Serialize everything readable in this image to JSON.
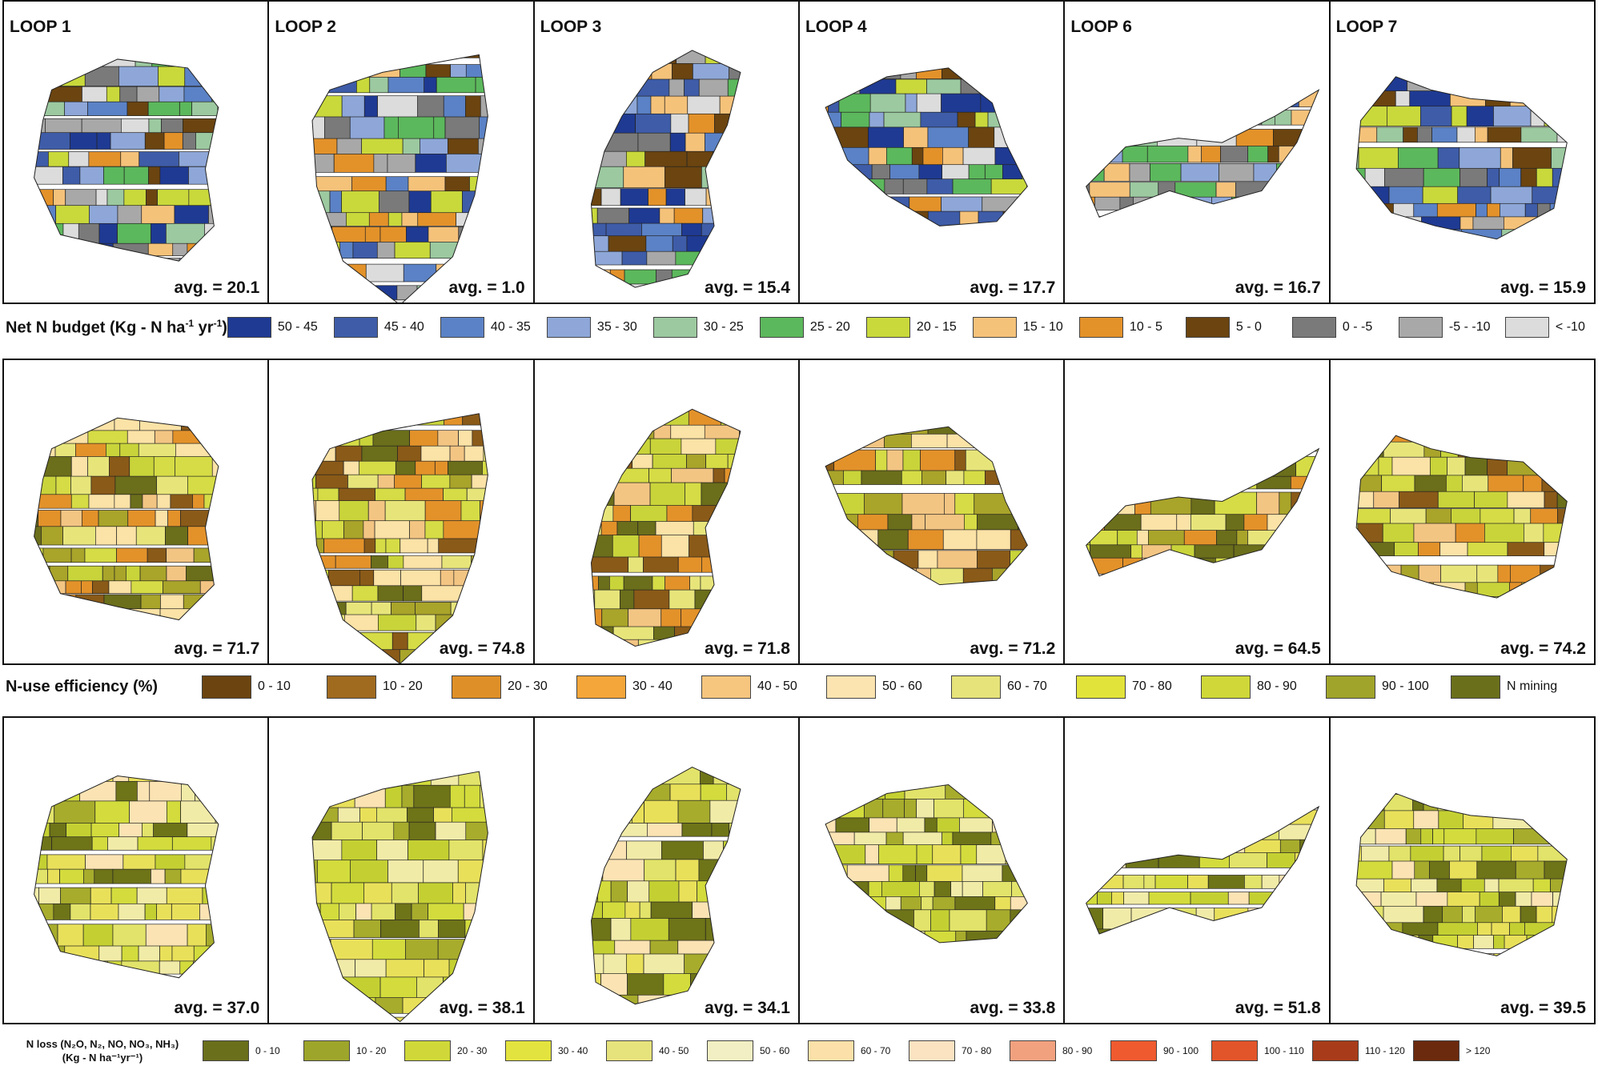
{
  "loops": [
    "LOOP 1",
    "LOOP 2",
    "LOOP 3",
    "LOOP 4",
    "LOOP 6",
    "LOOP 7"
  ],
  "rows": [
    {
      "id": "net-n-budget",
      "avgs": [
        "avg. = 20.1",
        "avg. = 1.0",
        "avg. = 15.4",
        "avg. = 17.7",
        "avg. = 16.7",
        "avg. = 15.9"
      ],
      "palette": [
        "#1f3a93",
        "#3e5ca8",
        "#5b82c6",
        "#8ea7d8",
        "#9cc9a0",
        "#5cb85c",
        "#c9d93b",
        "#f5c27a",
        "#e3922a",
        "#6b4410",
        "#7a7a7a",
        "#a8a8a8",
        "#dcdcdc"
      ],
      "legend": {
        "title": "Net N budget (Kg - N ha",
        "title_sup1": "-1",
        "title_mid": " yr",
        "title_sup2": "-1",
        "title_end": ")",
        "items": [
          {
            "label": "50 - 45",
            "color": "#1f3a93"
          },
          {
            "label": "45 - 40",
            "color": "#3e5ca8"
          },
          {
            "label": "40 - 35",
            "color": "#5b82c6"
          },
          {
            "label": "35 - 30",
            "color": "#8ea7d8"
          },
          {
            "label": "30 - 25",
            "color": "#9cc9a0"
          },
          {
            "label": "25 - 20",
            "color": "#5cb85c"
          },
          {
            "label": "20 - 15",
            "color": "#c9d93b"
          },
          {
            "label": "15 - 10",
            "color": "#f5c27a"
          },
          {
            "label": "10 - 5",
            "color": "#e3922a"
          },
          {
            "label": "5 - 0",
            "color": "#6b4410"
          },
          {
            "label": "0 - -5",
            "color": "#7a7a7a"
          },
          {
            "label": "-5 - -10",
            "color": "#a8a8a8"
          },
          {
            "label": "< -10",
            "color": "#dcdcdc"
          }
        ]
      }
    },
    {
      "id": "n-use-efficiency",
      "avgs": [
        "avg. = 71.7",
        "avg. = 74.8",
        "avg. = 71.8",
        "avg. = 71.2",
        "avg. = 64.5",
        "avg. = 74.2"
      ],
      "palette": [
        "#e7e57a",
        "#d6dc45",
        "#c9d43a",
        "#fbe2a6",
        "#f3c583",
        "#e3922a",
        "#a9a42a",
        "#6b6e1a",
        "#8a5a18"
      ],
      "legend": {
        "title": "N-use efficiency (%)",
        "items": [
          {
            "label": "0 - 10",
            "color": "#6b4410"
          },
          {
            "label": "10 - 20",
            "color": "#a06a1f"
          },
          {
            "label": "20 - 30",
            "color": "#df8f27"
          },
          {
            "label": "30 - 40",
            "color": "#f4a63a"
          },
          {
            "label": "40 - 50",
            "color": "#f6c67f"
          },
          {
            "label": "50 - 60",
            "color": "#fbe4b0"
          },
          {
            "label": "60 - 70",
            "color": "#e6e37a"
          },
          {
            "label": "70 - 80",
            "color": "#e2e33a"
          },
          {
            "label": "80 - 90",
            "color": "#cfd838"
          },
          {
            "label": "90 - 100",
            "color": "#a0a42a"
          },
          {
            "label": "N mining",
            "color": "#6a6f1c"
          }
        ]
      }
    },
    {
      "id": "n-loss",
      "avgs": [
        "avg. = 37.0",
        "avg. = 38.1",
        "avg. = 34.1",
        "avg. = 33.8",
        "avg. = 51.8",
        "avg. = 39.5"
      ],
      "palette": [
        "#d3dc3c",
        "#c4d032",
        "#e2e36a",
        "#a7ac2c",
        "#f1eba8",
        "#6e7418",
        "#fbe3b3",
        "#e9e05a"
      ],
      "legend": {
        "title_line1": "N loss (N₂O, N₂, NO, NO₃, NH₃)",
        "title_line2": "(Kg - N ha⁻¹yr⁻¹)",
        "items": [
          {
            "label": "0 - 10",
            "color": "#6a6f1c"
          },
          {
            "label": "10 - 20",
            "color": "#9ea52b"
          },
          {
            "label": "20 - 30",
            "color": "#cfd838"
          },
          {
            "label": "30 - 40",
            "color": "#e3e33f"
          },
          {
            "label": "40 - 50",
            "color": "#e6e27c"
          },
          {
            "label": "50 - 60",
            "color": "#f1efc3"
          },
          {
            "label": "60 - 70",
            "color": "#fbe1a9"
          },
          {
            "label": "70 - 80",
            "color": "#fbe3c2"
          },
          {
            "label": "80 - 90",
            "color": "#f2a17f"
          },
          {
            "label": "90 - 100",
            "color": "#ef5a2f"
          },
          {
            "label": "100 - 110",
            "color": "#e2552a"
          },
          {
            "label": "110 - 120",
            "color": "#a83c1a"
          },
          {
            "label": "> 120",
            "color": "#6b2a0e"
          }
        ]
      }
    }
  ]
}
